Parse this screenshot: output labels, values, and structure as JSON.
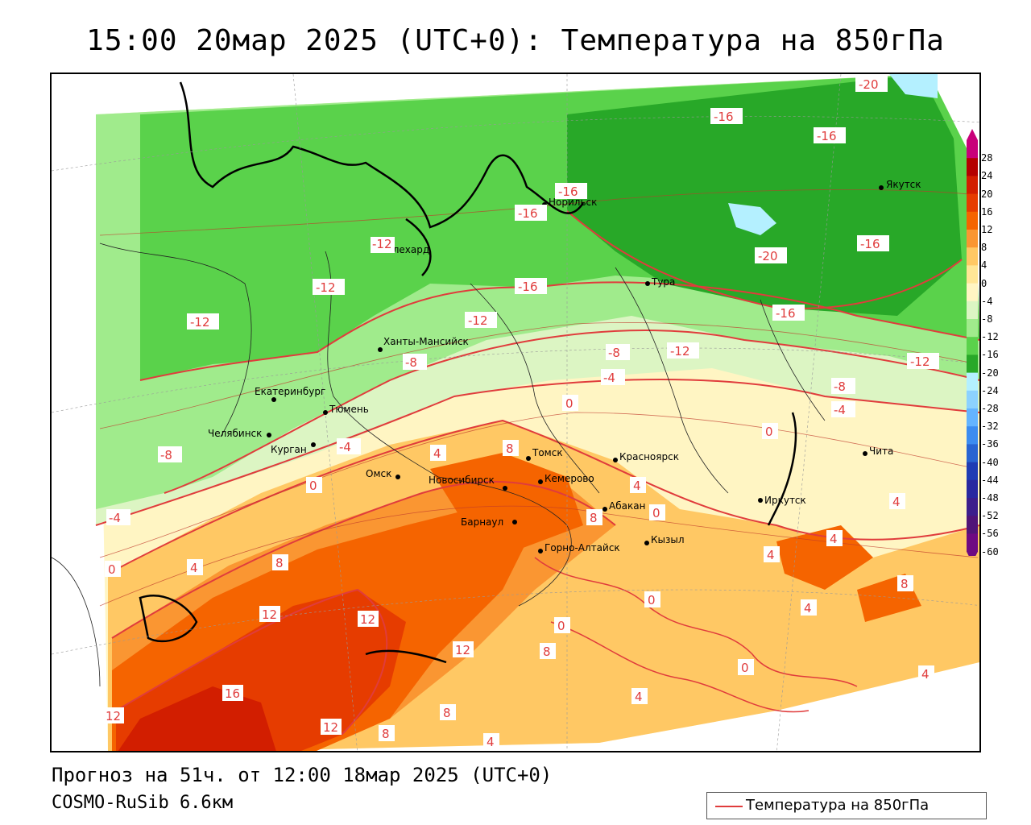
{
  "title": "15:00 20мар 2025 (UTC+0): Температура на 850гПа",
  "footer": {
    "forecast": "Прогноз на 51ч. от 12:00 18мар 2025 (UTC+0)",
    "model": "COSMO-RuSib 6.6км"
  },
  "legend": {
    "label": "Температура на 850гПа",
    "line_color": "#e03c3c"
  },
  "scale": {
    "ticks": [
      "28",
      "24",
      "20",
      "16",
      "12",
      "8",
      "4",
      "0",
      "-4",
      "-8",
      "-12",
      "-16",
      "-20",
      "-24",
      "-28",
      "-32",
      "-36",
      "-40",
      "-44",
      "-48",
      "-52",
      "-56",
      "-60"
    ],
    "colors": [
      "#c8007a",
      "#b40000",
      "#d21e00",
      "#e63c00",
      "#f56400",
      "#fa9632",
      "#ffc864",
      "#ffe696",
      "#fff5c3",
      "#dcf5c3",
      "#a0eb8c",
      "#5ad24b",
      "#28a828",
      "#b4f0ff",
      "#8cd2ff",
      "#64b4ff",
      "#3c8cf0",
      "#2864d2",
      "#1e3cb4",
      "#2828a0",
      "#3c1e8c",
      "#501478",
      "#6e0a82"
    ]
  },
  "cities": [
    {
      "name": "Салехард"
    },
    {
      "name": "Норильск"
    },
    {
      "name": "Якутск"
    },
    {
      "name": "Тура"
    },
    {
      "name": "Ханты-Мансийск"
    },
    {
      "name": "Екатеринбург"
    },
    {
      "name": "Тюмень"
    },
    {
      "name": "Челябинск"
    },
    {
      "name": "Курган"
    },
    {
      "name": "Омск"
    },
    {
      "name": "Новосибирск"
    },
    {
      "name": "Томск"
    },
    {
      "name": "Кемерово"
    },
    {
      "name": "Красноярск"
    },
    {
      "name": "Абакан"
    },
    {
      "name": "Барнаул"
    },
    {
      "name": "Горно-Алтайск"
    },
    {
      "name": "Кызыл"
    },
    {
      "name": "Иркутск"
    },
    {
      "name": "Чита"
    }
  ],
  "contour_labels": [
    "-20",
    "-16",
    "-16",
    "-16",
    "-16",
    "-20",
    "-16",
    "-16",
    "-16",
    "-12",
    "-12",
    "-12",
    "-12",
    "-12",
    "-12",
    "-8",
    "-8",
    "-8",
    "-8",
    "-4",
    "-4",
    "-4",
    "-4",
    "0",
    "0",
    "0",
    "0",
    "0",
    "0",
    "0",
    "0",
    "4",
    "4",
    "4",
    "4",
    "4",
    "4",
    "4",
    "4",
    "4",
    "4",
    "8",
    "8",
    "8",
    "8",
    "8",
    "8",
    "8",
    "12",
    "12",
    "12",
    "12",
    "12",
    "16"
  ]
}
